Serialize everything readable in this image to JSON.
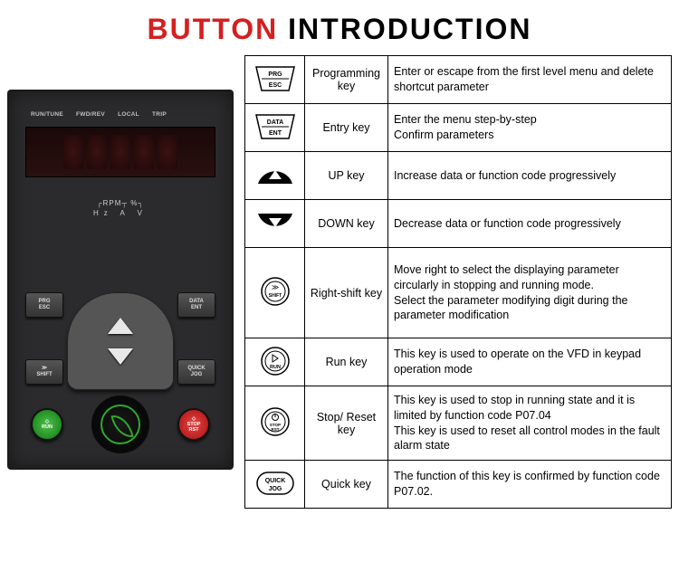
{
  "title": {
    "part1": "BUTTON",
    "part2": "INTRODUCTION"
  },
  "device": {
    "leds": [
      "RUN/TUNE",
      "FWD/REV",
      "LOCAL",
      "TRIP"
    ],
    "unit_line1": "┌RPM┬ %┐",
    "unit_line2": "Hz  A  V",
    "buttons": {
      "prg": {
        "l1": "PRG",
        "l2": "ESC"
      },
      "data": {
        "l1": "DATA",
        "l2": "ENT"
      },
      "shift": "SHIFT",
      "quick": {
        "l1": "QUICK",
        "l2": "JOG"
      },
      "run": "RUN",
      "stop": {
        "l1": "STOP",
        "l2": "RST"
      }
    }
  },
  "rows": [
    {
      "icon": "prg",
      "name": "Programming key",
      "desc": "Enter or escape from the first level menu and delete shortcut parameter"
    },
    {
      "icon": "data",
      "name": "Entry key",
      "desc": "Enter the menu step-by-step\nConfirm parameters"
    },
    {
      "icon": "up",
      "name": "UP key",
      "desc": "Increase data or function code progressively"
    },
    {
      "icon": "down",
      "name": "DOWN key",
      "desc": "Decrease data or function code progressively"
    },
    {
      "icon": "shift",
      "name": "Right-shift key",
      "desc": "Move right to select the displaying parameter circularly in stopping and running mode.\nSelect the parameter modifying digit during the parameter modification"
    },
    {
      "icon": "run",
      "name": "Run key",
      "desc": "This key is used to operate on the VFD in keypad operation mode"
    },
    {
      "icon": "stop",
      "name": "Stop/ Reset key",
      "desc": "This key is used to stop in running state and it is limited by function code P07.04\nThis key is used to reset all control modes in the fault alarm state"
    },
    {
      "icon": "quick",
      "name": "Quick key",
      "desc": "The function of this key is confirmed by function code P07.02."
    }
  ],
  "colors": {
    "red": "#d42020",
    "black": "#000000",
    "border": "#000000",
    "panel": "#2b2b2d",
    "green": "#2ea82e"
  }
}
